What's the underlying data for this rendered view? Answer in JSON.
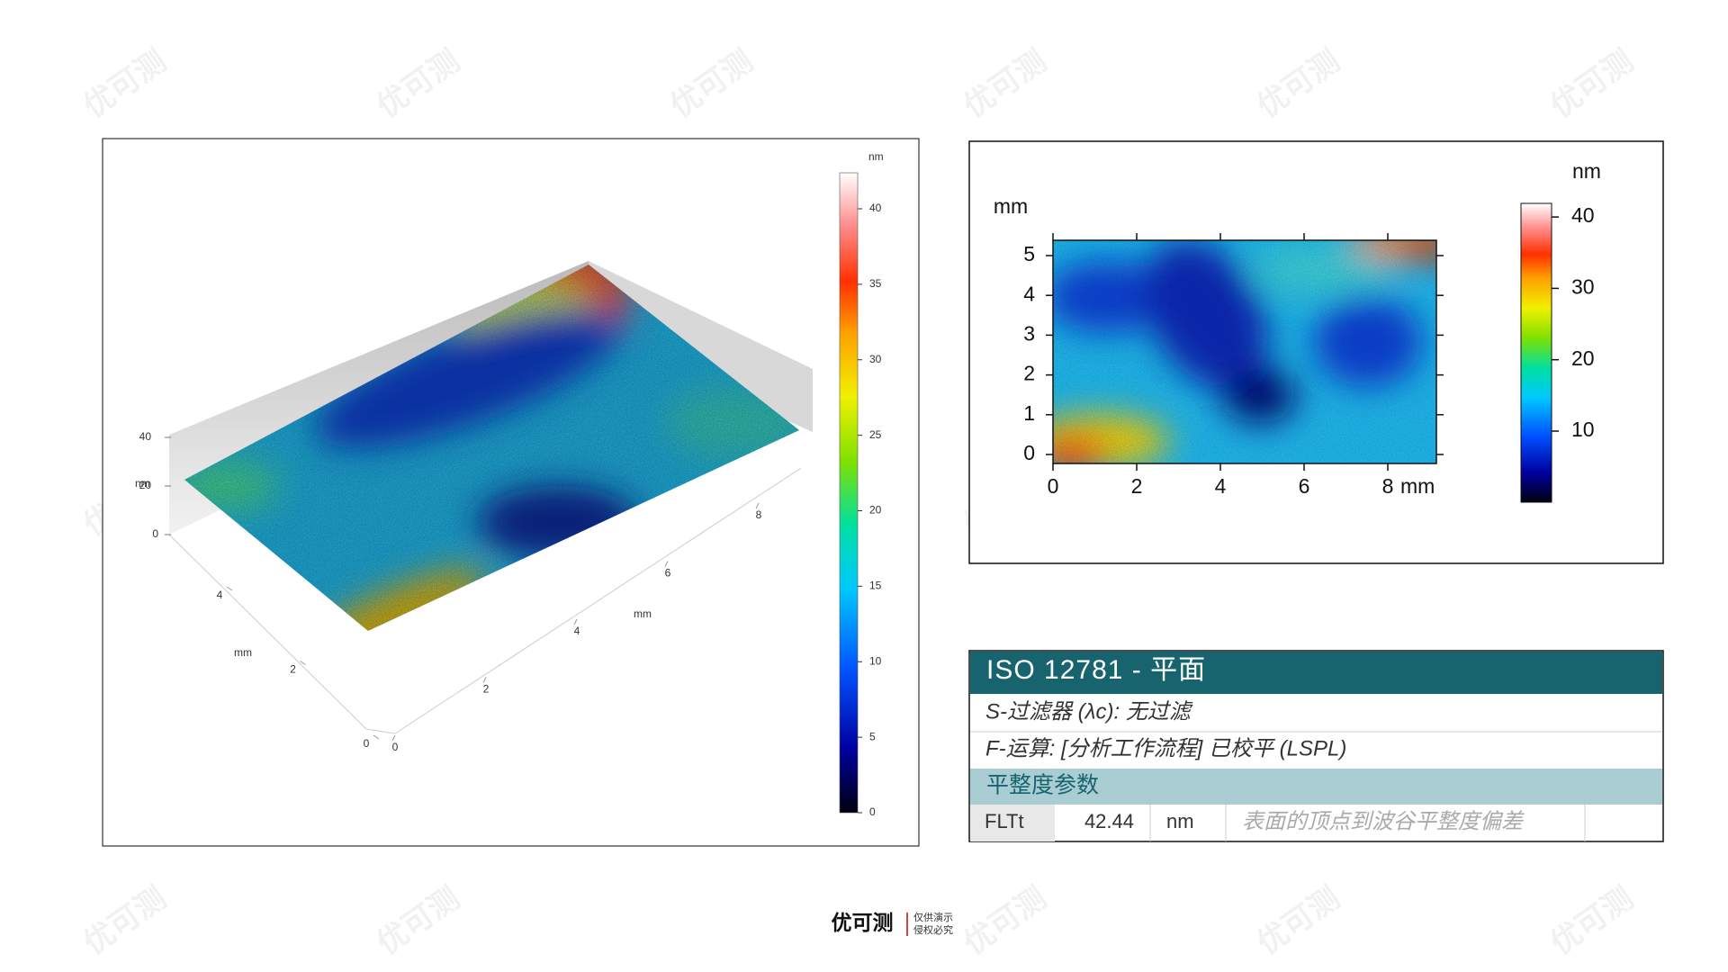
{
  "watermark": "优可测",
  "surface_3d": {
    "colorbar": {
      "unit": "nm",
      "ticks": [
        0,
        5,
        10,
        15,
        20,
        25,
        30,
        35,
        40
      ]
    },
    "z_axis": {
      "unit": "nm",
      "ticks": [
        0,
        20,
        40
      ]
    },
    "y_axis": {
      "unit": "mm",
      "ticks": [
        0,
        2,
        4
      ]
    },
    "x_axis": {
      "unit": "mm",
      "ticks": [
        0,
        2,
        4,
        6,
        8
      ]
    }
  },
  "heatmap": {
    "y_unit": "mm",
    "yticks": [
      0,
      1,
      2,
      3,
      4,
      5
    ],
    "x_unit": "mm",
    "xticks": [
      0,
      2,
      4,
      6,
      8
    ],
    "colorbar": {
      "unit": "nm",
      "ticks": [
        10,
        20,
        30,
        40
      ]
    }
  },
  "table": {
    "title": "ISO 12781 - 平面",
    "rows": [
      "S-过滤器 (λc): 无过滤",
      "F-运算: [分析工作流程] 已校平 (LSPL)"
    ],
    "section": "平整度参数",
    "params": [
      [
        "FLTt",
        42.44,
        "nm",
        "表面的顶点到波谷平整度偏差"
      ]
    ]
  },
  "footer": {
    "logo": "优可测",
    "note": [
      "仅供演示",
      "侵权必究"
    ]
  }
}
